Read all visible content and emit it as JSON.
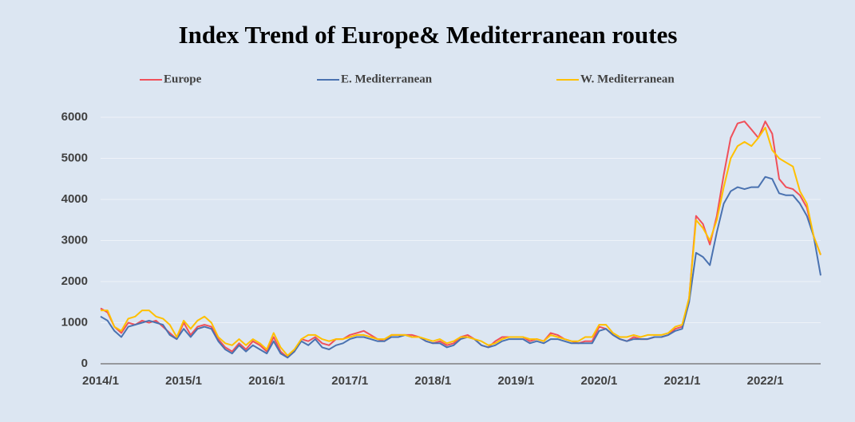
{
  "chart_data": {
    "type": "line",
    "title": "Index Trend of Europe& Mediterranean routes",
    "categories": [
      "2014/1",
      null,
      null,
      null,
      null,
      null,
      null,
      null,
      null,
      null,
      null,
      null,
      "2015/1",
      null,
      null,
      null,
      null,
      null,
      null,
      null,
      null,
      null,
      null,
      null,
      "2016/1",
      null,
      null,
      null,
      null,
      null,
      null,
      null,
      null,
      null,
      null,
      null,
      "2017/1",
      null,
      null,
      null,
      null,
      null,
      null,
      null,
      null,
      null,
      null,
      null,
      "2018/1",
      null,
      null,
      null,
      null,
      null,
      null,
      null,
      null,
      null,
      null,
      null,
      "2019/1",
      null,
      null,
      null,
      null,
      null,
      null,
      null,
      null,
      null,
      null,
      null,
      "2020/1",
      null,
      null,
      null,
      null,
      null,
      null,
      null,
      null,
      null,
      null,
      null,
      "2021/1",
      null,
      null,
      null,
      null,
      null,
      null,
      null,
      null,
      null,
      null,
      null,
      "2022/1",
      null,
      null,
      null,
      null,
      null,
      null,
      null,
      null
    ],
    "series": [
      {
        "name": "Europe",
        "color": "#f0505a",
        "values": [
          1350,
          1250,
          900,
          750,
          1000,
          950,
          1050,
          1000,
          1050,
          900,
          750,
          600,
          1000,
          700,
          900,
          950,
          900,
          600,
          400,
          300,
          500,
          350,
          550,
          450,
          300,
          650,
          300,
          150,
          300,
          600,
          550,
          650,
          500,
          450,
          600,
          600,
          700,
          750,
          800,
          700,
          600,
          550,
          700,
          700,
          700,
          700,
          650,
          550,
          500,
          550,
          450,
          500,
          650,
          700,
          600,
          450,
          400,
          550,
          650,
          650,
          650,
          650,
          550,
          600,
          550,
          750,
          700,
          600,
          550,
          500,
          550,
          550,
          900,
          850,
          700,
          600,
          550,
          650,
          600,
          600,
          650,
          650,
          700,
          850,
          900,
          1600,
          3600,
          3400,
          2900,
          3600,
          4600,
          5500,
          5850,
          5900,
          5700,
          5500,
          5900,
          5600,
          4500,
          4300,
          4250,
          4100,
          3800,
          3100,
          2650
        ]
      },
      {
        "name": "E. Mediterranean",
        "color": "#4a72b0",
        "values": [
          1150,
          1050,
          800,
          650,
          900,
          950,
          1000,
          1050,
          1000,
          950,
          700,
          600,
          850,
          650,
          850,
          900,
          850,
          550,
          350,
          250,
          450,
          300,
          450,
          350,
          250,
          550,
          250,
          150,
          300,
          550,
          450,
          600,
          400,
          350,
          450,
          500,
          600,
          650,
          650,
          600,
          550,
          550,
          650,
          650,
          700,
          650,
          650,
          550,
          500,
          500,
          400,
          450,
          600,
          650,
          600,
          450,
          400,
          450,
          550,
          600,
          600,
          600,
          500,
          550,
          500,
          600,
          600,
          550,
          500,
          500,
          500,
          500,
          800,
          850,
          700,
          600,
          550,
          600,
          600,
          600,
          650,
          650,
          700,
          800,
          850,
          1500,
          2700,
          2600,
          2400,
          3200,
          3900,
          4200,
          4300,
          4250,
          4300,
          4300,
          4550,
          4500,
          4150,
          4100,
          4100,
          3900,
          3600,
          3100,
          2150
        ]
      },
      {
        "name": "W. Mediterranean",
        "color": "#ffc000",
        "values": [
          1300,
          1300,
          900,
          800,
          1100,
          1150,
          1300,
          1300,
          1150,
          1100,
          950,
          650,
          1050,
          850,
          1050,
          1150,
          1000,
          650,
          500,
          450,
          600,
          450,
          600,
          500,
          350,
          750,
          400,
          200,
          350,
          600,
          700,
          700,
          600,
          550,
          600,
          600,
          650,
          700,
          700,
          650,
          600,
          600,
          700,
          700,
          700,
          650,
          650,
          600,
          550,
          600,
          500,
          550,
          650,
          650,
          600,
          550,
          450,
          500,
          600,
          650,
          650,
          650,
          600,
          600,
          550,
          700,
          650,
          600,
          550,
          550,
          650,
          650,
          950,
          950,
          750,
          650,
          650,
          700,
          650,
          700,
          700,
          700,
          750,
          900,
          950,
          1600,
          3500,
          3300,
          3000,
          3500,
          4300,
          5000,
          5300,
          5400,
          5300,
          5500,
          5750,
          5200,
          5000,
          4900,
          4800,
          4200,
          3900,
          3100,
          2650
        ]
      }
    ],
    "ylim": [
      0,
      6000
    ],
    "yticks": [
      0,
      1000,
      2000,
      3000,
      4000,
      5000,
      6000
    ],
    "grid": true
  }
}
